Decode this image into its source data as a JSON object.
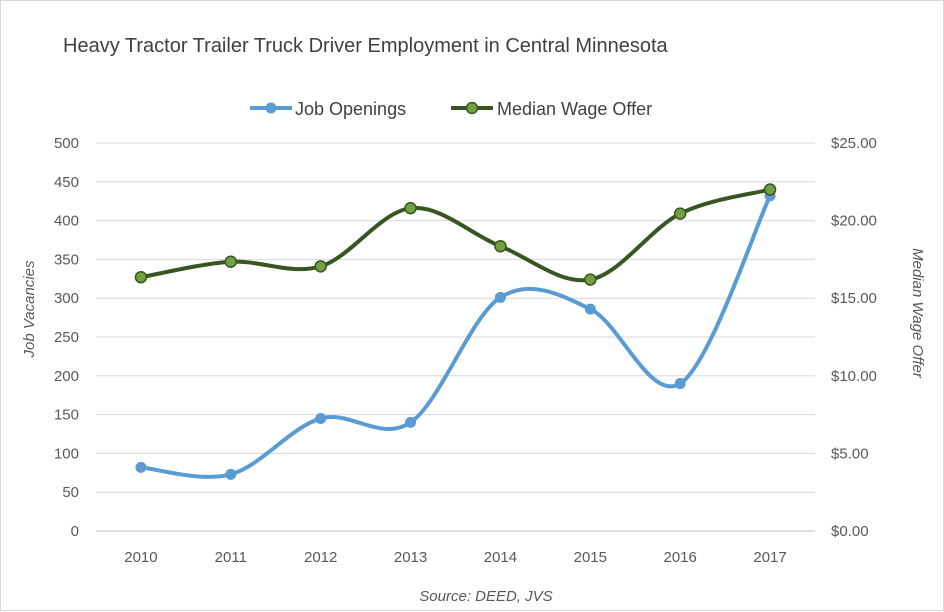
{
  "chart_data": {
    "type": "line",
    "title": "Heavy Tractor Trailer Truck Driver Employment in Central Minnesota",
    "categories": [
      "2010",
      "2011",
      "2012",
      "2013",
      "2014",
      "2015",
      "2016",
      "2017"
    ],
    "series": [
      {
        "name": "Job Openings",
        "axis": "left",
        "color": "#5b9bd5",
        "values": [
          82,
          73,
          145,
          140,
          301,
          286,
          190,
          432
        ]
      },
      {
        "name": "Median Wage Offer",
        "axis": "right",
        "color": "#375623",
        "marker_color": "#70a040",
        "values": [
          16.35,
          17.35,
          17.05,
          20.8,
          18.35,
          16.2,
          20.45,
          22.0
        ]
      }
    ],
    "y_left": {
      "label": "Job Vacancies",
      "ylim": [
        0,
        500
      ],
      "ticks": [
        "0",
        "50",
        "100",
        "150",
        "200",
        "250",
        "300",
        "350",
        "400",
        "450",
        "500"
      ]
    },
    "y_right": {
      "label": "Median Wage Offer",
      "ylim": [
        0,
        25
      ],
      "ticks": [
        "$0.00",
        "$5.00",
        "$10.00",
        "$15.00",
        "$20.00",
        "$25.00"
      ]
    },
    "grid": true,
    "legend_position": "top",
    "smooth": true,
    "source": "Source: DEED, JVS"
  }
}
